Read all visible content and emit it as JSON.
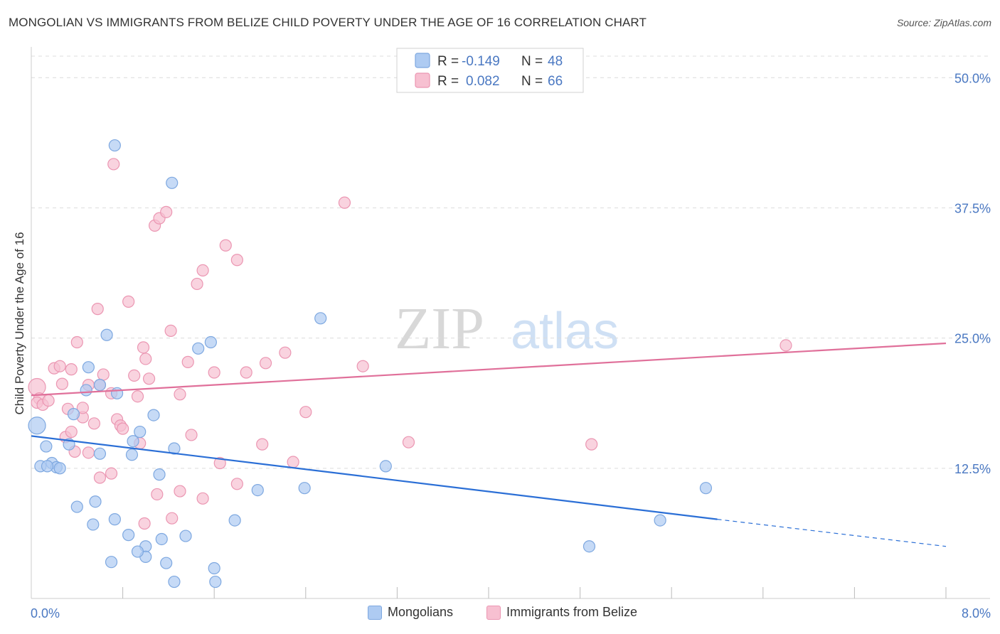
{
  "title": "MONGOLIAN VS IMMIGRANTS FROM BELIZE CHILD POVERTY UNDER THE AGE OF 16 CORRELATION CHART",
  "source": "Source: ZipAtlas.com",
  "watermark": {
    "zip": "ZIP",
    "atlas": "atlas"
  },
  "colors": {
    "mongolians_fill": "#aecbf2",
    "mongolians_stroke": "#7ea8e0",
    "mongolians_line": "#2b6fd6",
    "belize_fill": "#f7c0d1",
    "belize_stroke": "#eb96b2",
    "belize_line": "#e0709a",
    "axis_value": "#4a78c2",
    "grid": "#dcdcdc"
  },
  "legend_top": {
    "rows": [
      {
        "r_label": "R =",
        "r_value": "-0.149",
        "n_label": "N =",
        "n_value": "48"
      },
      {
        "r_label": "R =",
        "r_value": "0.082",
        "n_label": "N =",
        "n_value": "66"
      }
    ]
  },
  "legend_bottom": [
    "Mongolians",
    "Immigrants from Belize"
  ],
  "chart_data": {
    "type": "scatter",
    "title": "MONGOLIAN VS IMMIGRANTS FROM BELIZE CHILD POVERTY UNDER THE AGE OF 16 CORRELATION CHART",
    "xlabel": "",
    "ylabel": "Child Poverty Under the Age of 16",
    "xlim": [
      0,
      8.0
    ],
    "ylim": [
      0,
      52
    ],
    "x_tick_labels": [
      "0.0%",
      "8.0%"
    ],
    "y_ticks": [
      12.5,
      25.0,
      37.5,
      50.0
    ],
    "y_tick_labels": [
      "12.5%",
      "25.0%",
      "37.5%",
      "50.0%"
    ],
    "grid": true,
    "legend_placement": "top-center",
    "series": [
      {
        "name": "Mongolians",
        "r": -0.149,
        "n": 48,
        "trend": {
          "x0": 0.0,
          "y0": 15.6,
          "x1": 6.0,
          "y1": 7.6,
          "dashed_to_x": 8.0,
          "dashed_to_y": 5.0
        },
        "points": [
          [
            0.05,
            16.6
          ],
          [
            0.13,
            14.6
          ],
          [
            0.08,
            12.7
          ],
          [
            0.18,
            13.0
          ],
          [
            0.22,
            12.6
          ],
          [
            0.25,
            12.5
          ],
          [
            0.14,
            12.7
          ],
          [
            0.33,
            14.8
          ],
          [
            0.37,
            17.7
          ],
          [
            0.48,
            20.0
          ],
          [
            0.5,
            22.2
          ],
          [
            0.6,
            20.5
          ],
          [
            0.66,
            25.3
          ],
          [
            0.75,
            19.7
          ],
          [
            0.6,
            13.9
          ],
          [
            0.73,
            43.5
          ],
          [
            0.88,
            13.8
          ],
          [
            0.95,
            16.0
          ],
          [
            0.89,
            15.1
          ],
          [
            1.07,
            17.6
          ],
          [
            1.12,
            11.9
          ],
          [
            1.25,
            14.4
          ],
          [
            1.23,
            39.9
          ],
          [
            1.46,
            24.0
          ],
          [
            1.57,
            24.6
          ],
          [
            0.56,
            9.3
          ],
          [
            0.4,
            8.8
          ],
          [
            0.54,
            7.1
          ],
          [
            0.73,
            7.6
          ],
          [
            0.85,
            6.1
          ],
          [
            1.0,
            5.0
          ],
          [
            1.14,
            5.7
          ],
          [
            1.18,
            3.4
          ],
          [
            1.35,
            6.0
          ],
          [
            1.6,
            2.9
          ],
          [
            1.25,
            1.6
          ],
          [
            1.61,
            1.6
          ],
          [
            2.39,
            10.6
          ],
          [
            2.53,
            26.9
          ],
          [
            3.1,
            12.7
          ],
          [
            4.88,
            5.0
          ],
          [
            5.5,
            7.5
          ],
          [
            5.9,
            10.6
          ],
          [
            1.98,
            10.4
          ],
          [
            1.0,
            4.0
          ],
          [
            0.93,
            4.5
          ],
          [
            0.7,
            3.5
          ],
          [
            1.78,
            7.5
          ]
        ]
      },
      {
        "name": "Immigrants from Belize",
        "r": 0.082,
        "n": 66,
        "trend": {
          "x0": 0.0,
          "y0": 19.5,
          "x1": 8.0,
          "y1": 24.5
        },
        "points": [
          [
            0.05,
            20.3
          ],
          [
            0.07,
            19.2
          ],
          [
            0.05,
            18.8
          ],
          [
            0.1,
            18.6
          ],
          [
            0.15,
            19.0
          ],
          [
            0.2,
            22.1
          ],
          [
            0.25,
            22.3
          ],
          [
            0.27,
            20.6
          ],
          [
            0.32,
            18.2
          ],
          [
            0.35,
            22.0
          ],
          [
            0.4,
            24.6
          ],
          [
            0.45,
            17.4
          ],
          [
            0.5,
            20.5
          ],
          [
            0.55,
            16.8
          ],
          [
            0.58,
            27.8
          ],
          [
            0.6,
            20.5
          ],
          [
            0.63,
            21.5
          ],
          [
            0.7,
            19.7
          ],
          [
            0.75,
            17.2
          ],
          [
            0.78,
            16.6
          ],
          [
            0.8,
            16.3
          ],
          [
            0.85,
            28.5
          ],
          [
            0.9,
            21.4
          ],
          [
            0.93,
            19.4
          ],
          [
            0.98,
            24.1
          ],
          [
            1.0,
            23.0
          ],
          [
            1.03,
            21.1
          ],
          [
            1.08,
            35.8
          ],
          [
            1.12,
            36.5
          ],
          [
            1.18,
            37.1
          ],
          [
            1.22,
            25.7
          ],
          [
            1.3,
            19.6
          ],
          [
            1.37,
            22.7
          ],
          [
            1.4,
            15.7
          ],
          [
            1.45,
            30.2
          ],
          [
            1.5,
            31.5
          ],
          [
            1.6,
            21.7
          ],
          [
            1.7,
            33.9
          ],
          [
            1.8,
            32.5
          ],
          [
            1.88,
            21.7
          ],
          [
            2.05,
            22.6
          ],
          [
            2.22,
            23.6
          ],
          [
            2.4,
            17.9
          ],
          [
            2.74,
            38.0
          ],
          [
            2.9,
            22.3
          ],
          [
            3.3,
            15.0
          ],
          [
            0.3,
            15.5
          ],
          [
            0.38,
            14.1
          ],
          [
            0.5,
            14.0
          ],
          [
            0.6,
            11.6
          ],
          [
            0.7,
            12.0
          ],
          [
            0.95,
            14.9
          ],
          [
            1.1,
            10.0
          ],
          [
            1.23,
            7.7
          ],
          [
            1.3,
            10.3
          ],
          [
            1.5,
            9.6
          ],
          [
            1.65,
            13.0
          ],
          [
            1.8,
            11.0
          ],
          [
            2.02,
            14.8
          ],
          [
            2.29,
            13.1
          ],
          [
            4.9,
            14.8
          ],
          [
            6.6,
            24.3
          ],
          [
            0.99,
            7.2
          ],
          [
            0.72,
            41.7
          ],
          [
            0.35,
            16.0
          ],
          [
            0.45,
            18.3
          ]
        ]
      }
    ]
  }
}
